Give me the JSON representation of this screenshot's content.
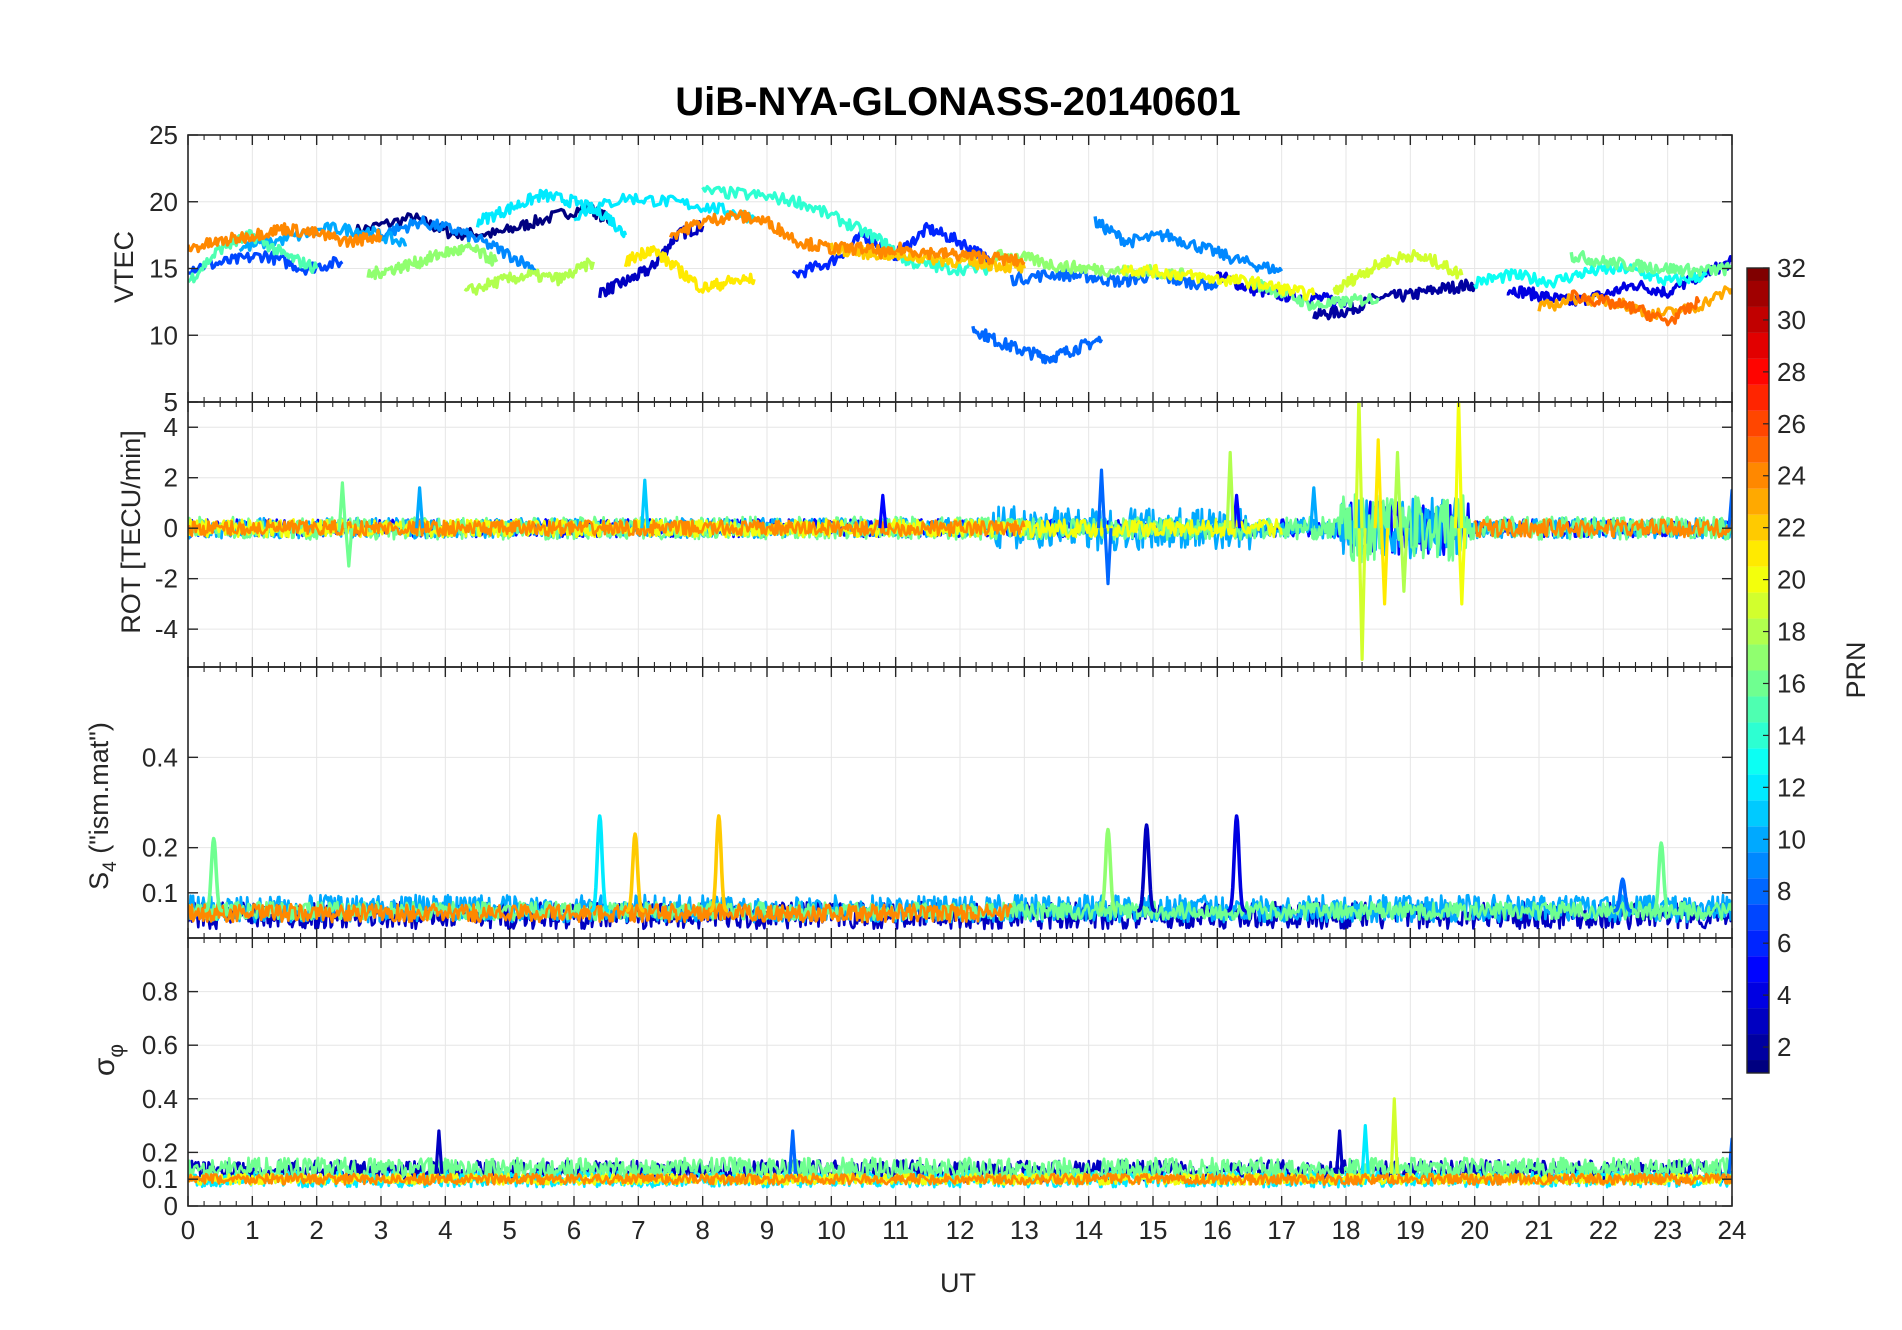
{
  "chart_data": {
    "type": "line",
    "title": "UiB-NYA-GLONASS-20140601",
    "xlabel": "UT",
    "xlim": [
      0,
      24
    ],
    "x_ticks": [
      "0",
      "1",
      "2",
      "3",
      "4",
      "5",
      "6",
      "7",
      "8",
      "9",
      "10",
      "11",
      "12",
      "13",
      "14",
      "15",
      "16",
      "17",
      "18",
      "19",
      "20",
      "21",
      "22",
      "23",
      "24"
    ],
    "colorbar": {
      "label": "PRN",
      "range": [
        1,
        32
      ],
      "ticks": [
        "2",
        "4",
        "6",
        "8",
        "10",
        "12",
        "14",
        "16",
        "18",
        "20",
        "22",
        "24",
        "26",
        "28",
        "30",
        "32"
      ],
      "colormap": "jet"
    },
    "panels": [
      {
        "id": "vtec",
        "ylabel": "VTEC",
        "ylim": [
          5,
          25
        ],
        "y_ticks": [
          {
            "v": 10,
            "t": "10"
          },
          {
            "v": 15,
            "t": "15"
          },
          {
            "v": 20,
            "t": "20"
          },
          {
            "v": 25,
            "t": "25"
          }
        ],
        "tracks": [
          {
            "prn": 1,
            "x": [
              2.6,
              3.5,
              4.1,
              4.8,
              5.4,
              6.2,
              6.6
            ],
            "y": [
              17.8,
              18.8,
              17.6,
              17.6,
              18.5,
              19.6,
              18.5
            ]
          },
          {
            "prn": 3,
            "x": [
              6.4,
              6.8,
              7.2,
              7.6,
              8.0
            ],
            "y": [
              13.2,
              14.0,
              15.0,
              17.5,
              18.2
            ]
          },
          {
            "prn": 2,
            "x": [
              17.5,
              18.0,
              18.5,
              19.0,
              19.5,
              20.0
            ],
            "y": [
              11.5,
              11.8,
              12.8,
              13.0,
              13.5,
              13.8
            ]
          },
          {
            "prn": 4,
            "x": [
              16.0,
              16.5,
              17.0,
              17.5,
              18.0
            ],
            "y": [
              14.5,
              13.5,
              13.0,
              12.8,
              12.5
            ]
          },
          {
            "prn": 4,
            "x": [
              20.5,
              21.0,
              21.5,
              22.0,
              22.5,
              23.0,
              23.5,
              24.0
            ],
            "y": [
              13.5,
              13.0,
              12.5,
              13.0,
              13.8,
              13.2,
              14.5,
              15.5
            ]
          },
          {
            "prn": 6,
            "x": [
              9.4,
              10.0,
              10.5,
              11.0,
              11.5,
              12.0,
              12.5
            ],
            "y": [
              14.5,
              15.5,
              17.5,
              16.0,
              18.0,
              17.0,
              15.5
            ]
          },
          {
            "prn": 7,
            "x": [
              0.0,
              0.6,
              1.2,
              1.8,
              2.4
            ],
            "y": [
              15.0,
              15.5,
              16.0,
              15.0,
              15.5
            ]
          },
          {
            "prn": 8,
            "x": [
              12.2,
              12.6,
              13.0,
              13.4,
              13.8,
              14.2
            ],
            "y": [
              10.5,
              9.5,
              8.8,
              8.3,
              9.0,
              9.7
            ]
          },
          {
            "prn": 8,
            "x": [
              12.8,
              13.5,
              14.0,
              14.5,
              15.0,
              15.5,
              16.0
            ],
            "y": [
              14.2,
              14.6,
              14.4,
              14.0,
              14.5,
              14.0,
              13.8
            ]
          },
          {
            "prn": 9,
            "x": [
              14.1,
              14.6,
              15.2,
              15.8,
              16.4,
              17.0
            ],
            "y": [
              18.5,
              17.0,
              17.5,
              16.5,
              15.5,
              14.8
            ]
          },
          {
            "prn": 9,
            "x": [
              3.0,
              3.6,
              4.2,
              4.8,
              5.4
            ],
            "y": [
              17.5,
              18.5,
              17.8,
              16.5,
              15.0
            ]
          },
          {
            "prn": 10,
            "x": [
              0.8,
              1.5,
              2.2,
              2.8,
              3.4
            ],
            "y": [
              16.5,
              17.2,
              18.0,
              17.8,
              16.8
            ]
          },
          {
            "prn": 12,
            "x": [
              4.5,
              5.0,
              5.5,
              6.0,
              6.5,
              6.8
            ],
            "y": [
              18.5,
              19.5,
              20.5,
              20.0,
              19.0,
              17.5
            ]
          },
          {
            "prn": 12,
            "x": [
              6.0,
              6.8,
              7.5,
              8.2,
              8.8
            ],
            "y": [
              19.0,
              20.3,
              20.0,
              19.5,
              18.8
            ]
          },
          {
            "prn": 13,
            "x": [
              20.0,
              20.6,
              21.2,
              21.8,
              22.4,
              23.0,
              23.6
            ],
            "y": [
              14.0,
              14.5,
              14.0,
              14.8,
              15.0,
              14.0,
              14.5
            ]
          },
          {
            "prn": 14,
            "x": [
              8.0,
              8.8,
              9.5,
              10.2,
              10.8,
              11.2,
              11.8,
              12.5
            ],
            "y": [
              20.8,
              20.5,
              20.0,
              18.5,
              17.0,
              15.5,
              15.0,
              15.0
            ]
          },
          {
            "prn": 15,
            "x": [
              0.0,
              0.5,
              1.0,
              1.5,
              2.0
            ],
            "y": [
              14.0,
              16.5,
              17.5,
              16.0,
              15.0
            ]
          },
          {
            "prn": 16,
            "x": [
              16.5,
              17.0,
              17.5,
              18.0,
              18.5
            ],
            "y": [
              14.0,
              13.2,
              12.2,
              12.5,
              12.8
            ]
          },
          {
            "prn": 16,
            "x": [
              21.5,
              22.0,
              22.5,
              23.0,
              23.5,
              24.0
            ],
            "y": [
              16.0,
              15.5,
              15.2,
              15.0,
              14.8,
              15.0
            ]
          },
          {
            "prn": 17,
            "x": [
              12.5,
              13.0,
              13.5,
              14.0,
              14.5,
              15.0,
              15.5
            ],
            "y": [
              16.0,
              15.8,
              15.2,
              15.0,
              14.8,
              14.8,
              14.5
            ]
          },
          {
            "prn": 17,
            "x": [
              2.8,
              3.2,
              3.6,
              4.0,
              4.4,
              4.8
            ],
            "y": [
              14.5,
              15.0,
              15.5,
              16.2,
              16.5,
              15.5
            ]
          },
          {
            "prn": 18,
            "x": [
              4.3,
              4.8,
              5.3,
              5.8,
              6.3
            ],
            "y": [
              13.2,
              14.0,
              14.5,
              14.2,
              15.5
            ]
          },
          {
            "prn": 19,
            "x": [
              17.8,
              18.2,
              18.6,
              19.0,
              19.4,
              19.8
            ],
            "y": [
              13.2,
              14.5,
              15.5,
              16.0,
              15.5,
              14.5
            ]
          },
          {
            "prn": 20,
            "x": [
              14.5,
              15.0,
              15.5,
              16.0,
              16.5,
              17.0,
              17.5
            ],
            "y": [
              15.0,
              14.8,
              14.5,
              14.2,
              14.0,
              13.5,
              13.0
            ]
          },
          {
            "prn": 21,
            "x": [
              6.8,
              7.2,
              7.6,
              8.0,
              8.4,
              8.8
            ],
            "y": [
              15.5,
              16.5,
              15.0,
              13.5,
              14.0,
              14.2
            ]
          },
          {
            "prn": 22,
            "x": [
              10.0,
              10.5,
              11.0,
              11.5,
              12.0,
              12.5,
              13.0
            ],
            "y": [
              16.5,
              16.2,
              16.0,
              15.8,
              15.5,
              15.3,
              15.0
            ]
          },
          {
            "prn": 23,
            "x": [
              21.0,
              21.6,
              22.2,
              22.8,
              23.4,
              24.0
            ],
            "y": [
              12.0,
              12.8,
              12.5,
              11.5,
              12.0,
              13.5
            ]
          },
          {
            "prn": 24,
            "x": [
              0.0,
              0.5,
              1.0,
              1.5,
              2.0,
              2.5,
              3.0
            ],
            "y": [
              16.5,
              17.0,
              17.5,
              18.0,
              17.6,
              17.0,
              17.5
            ]
          },
          {
            "prn": 24,
            "x": [
              7.5,
              8.0,
              8.5,
              9.0,
              9.5,
              10.0,
              10.5,
              11.0
            ],
            "y": [
              17.5,
              18.5,
              19.0,
              18.5,
              17.0,
              16.5,
              16.5,
              16.0
            ]
          },
          {
            "prn": 24,
            "x": [
              11.0,
              11.5,
              12.0,
              12.5,
              13.0
            ],
            "y": [
              16.5,
              16.2,
              16.0,
              15.8,
              15.5
            ]
          },
          {
            "prn": 25,
            "x": [
              21.5,
              22.0,
              22.5,
              23.0,
              23.5
            ],
            "y": [
              13.0,
              12.5,
              12.0,
              11.0,
              12.5
            ]
          }
        ]
      },
      {
        "id": "rot",
        "ylabel": "ROT [TECU/min]",
        "ylim": [
          -5.5,
          5
        ],
        "y_ticks": [
          {
            "v": -4,
            "t": "-4"
          },
          {
            "v": -2,
            "t": "-2"
          },
          {
            "v": 0,
            "t": "0"
          },
          {
            "v": 2,
            "t": "2"
          },
          {
            "v": 4,
            "t": "4"
          },
          {
            "v": 5,
            "t": "5"
          }
        ],
        "bands": [
          {
            "prn": 5,
            "x0": 0,
            "x1": 24,
            "amp": 0.35
          },
          {
            "prn": 10,
            "x0": 0,
            "x1": 24,
            "amp": 0.4
          },
          {
            "prn": 16,
            "x0": 0,
            "x1": 24,
            "amp": 0.45
          },
          {
            "prn": 20,
            "x0": 0,
            "x1": 17,
            "amp": 0.35
          },
          {
            "prn": 24,
            "x0": 0,
            "x1": 13,
            "amp": 0.3
          },
          {
            "prn": 24,
            "x0": 20,
            "x1": 24,
            "amp": 0.35
          }
        ],
        "spikes": [
          {
            "prn": 16,
            "x": 2.4,
            "y": 1.8
          },
          {
            "prn": 16,
            "x": 2.5,
            "y": -1.5
          },
          {
            "prn": 11,
            "x": 7.1,
            "y": 1.9
          },
          {
            "prn": 10,
            "x": 3.6,
            "y": 1.6
          },
          {
            "prn": 5,
            "x": 10.8,
            "y": 1.3
          },
          {
            "prn": 8,
            "x": 14.2,
            "y": 2.3
          },
          {
            "prn": 8,
            "x": 14.3,
            "y": -2.2
          },
          {
            "prn": 5,
            "x": 16.3,
            "y": 1.3
          },
          {
            "prn": 18,
            "x": 16.2,
            "y": 3.0
          },
          {
            "prn": 10,
            "x": 17.5,
            "y": 1.6
          },
          {
            "prn": 19,
            "x": 18.2,
            "y": 5.2
          },
          {
            "prn": 19,
            "x": 18.25,
            "y": -5.2
          },
          {
            "prn": 21,
            "x": 18.5,
            "y": 3.5
          },
          {
            "prn": 21,
            "x": 18.6,
            "y": -3.0
          },
          {
            "prn": 18,
            "x": 18.8,
            "y": 3.0
          },
          {
            "prn": 18,
            "x": 18.9,
            "y": -2.5
          },
          {
            "prn": 20,
            "x": 19.75,
            "y": 5.2
          },
          {
            "prn": 20,
            "x": 19.8,
            "y": -3.0
          },
          {
            "prn": 8,
            "x": 24.0,
            "y": 1.5
          }
        ]
      },
      {
        "id": "s4",
        "ylabel": "S",
        "ylabel_sub": "4",
        "ylabel_rest": " (\"ism.mat\")",
        "ylim": [
          0,
          0.6
        ],
        "y_ticks": [
          {
            "v": 0.1,
            "t": "0.1"
          },
          {
            "v": 0.2,
            "t": "0.2"
          },
          {
            "v": 0.4,
            "t": "0.4"
          }
        ],
        "bands": [
          {
            "prn": 3,
            "x0": 0,
            "x1": 24,
            "amp": 0.03,
            "base": 0.05
          },
          {
            "prn": 10,
            "x0": 0,
            "x1": 24,
            "amp": 0.03,
            "base": 0.065
          },
          {
            "prn": 16,
            "x0": 0,
            "x1": 24,
            "amp": 0.02,
            "base": 0.06
          },
          {
            "prn": 24,
            "x0": 0,
            "x1": 12.8,
            "amp": 0.02,
            "base": 0.055
          }
        ],
        "peaks": [
          {
            "prn": 16,
            "x": 0.4,
            "h": 0.22
          },
          {
            "prn": 12,
            "x": 6.4,
            "h": 0.27
          },
          {
            "prn": 22,
            "x": 6.95,
            "h": 0.23
          },
          {
            "prn": 22,
            "x": 8.25,
            "h": 0.27
          },
          {
            "prn": 17,
            "x": 14.3,
            "h": 0.24
          },
          {
            "prn": 3,
            "x": 14.9,
            "h": 0.25
          },
          {
            "prn": 4,
            "x": 16.3,
            "h": 0.27
          },
          {
            "prn": 16,
            "x": 22.9,
            "h": 0.21
          },
          {
            "prn": 8,
            "x": 22.3,
            "h": 0.13
          }
        ]
      },
      {
        "id": "sigma",
        "ylabel": "σ",
        "ylabel_sub": "φ",
        "ylim": [
          0,
          1
        ],
        "y_ticks": [
          {
            "v": 0,
            "t": "0"
          },
          {
            "v": 0.1,
            "t": "0.1"
          },
          {
            "v": 0.2,
            "t": "0.2"
          },
          {
            "v": 0.4,
            "t": "0.4"
          },
          {
            "v": 0.6,
            "t": "0.6"
          },
          {
            "v": 0.8,
            "t": "0.8"
          }
        ],
        "bands": [
          {
            "prn": 3,
            "x0": 0,
            "x1": 24,
            "amp": 0.04,
            "base": 0.13
          },
          {
            "prn": 12,
            "x0": 0,
            "x1": 24,
            "amp": 0.03,
            "base": 0.1
          },
          {
            "prn": 16,
            "x0": 0,
            "x1": 24,
            "amp": 0.04,
            "base": 0.14
          },
          {
            "prn": 20,
            "x0": 0,
            "x1": 24,
            "amp": 0.02,
            "base": 0.1
          },
          {
            "prn": 24,
            "x0": 0,
            "x1": 24,
            "amp": 0.02,
            "base": 0.1
          }
        ],
        "spikes": [
          {
            "prn": 3,
            "x": 3.9,
            "y": 0.28
          },
          {
            "prn": 8,
            "x": 9.4,
            "y": 0.28
          },
          {
            "prn": 3,
            "x": 17.9,
            "y": 0.28
          },
          {
            "prn": 12,
            "x": 18.3,
            "y": 0.3
          },
          {
            "prn": 19,
            "x": 18.75,
            "y": 0.4
          },
          {
            "prn": 8,
            "x": 24.0,
            "y": 0.25
          }
        ]
      }
    ]
  }
}
